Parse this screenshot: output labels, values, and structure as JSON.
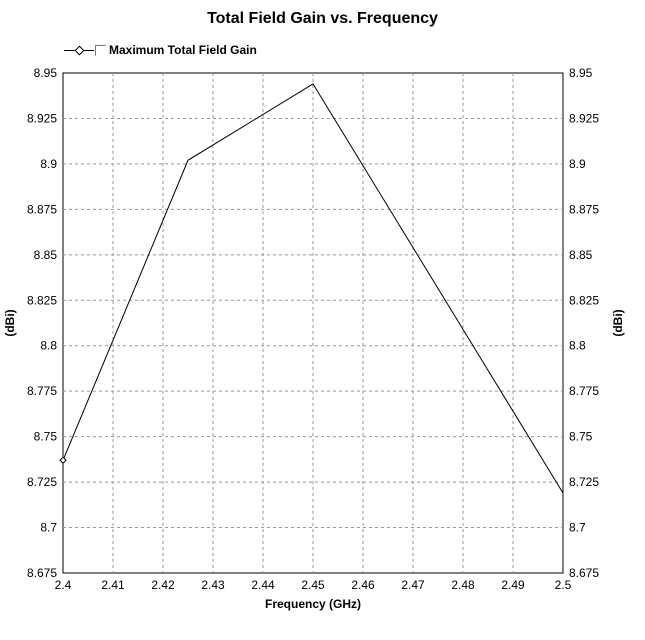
{
  "chart_data": {
    "type": "line",
    "title": "Total Field Gain vs. Frequency",
    "xlabel": "Frequency (GHz)",
    "ylabel": "(dBi)",
    "ylabel_right": "(dBi)",
    "xlim": [
      2.4,
      2.5
    ],
    "ylim": [
      8.675,
      8.95
    ],
    "x_ticks": [
      "2.4",
      "2.41",
      "2.42",
      "2.43",
      "2.44",
      "2.45",
      "2.46",
      "2.47",
      "2.48",
      "2.49",
      "2.5"
    ],
    "y_ticks": [
      "8.675",
      "8.7",
      "8.725",
      "8.75",
      "8.775",
      "8.8",
      "8.825",
      "8.85",
      "8.875",
      "8.9",
      "8.925",
      "8.95"
    ],
    "grid": true,
    "legend_position": "top-left",
    "series": [
      {
        "name": "Maximum Total Field Gain",
        "x": [
          2.4,
          2.425,
          2.45,
          2.5
        ],
        "y": [
          8.737,
          8.902,
          8.944,
          8.719
        ]
      }
    ]
  },
  "colors": {
    "line": "#000000",
    "grid": "#999999",
    "background": "#ffffff"
  }
}
